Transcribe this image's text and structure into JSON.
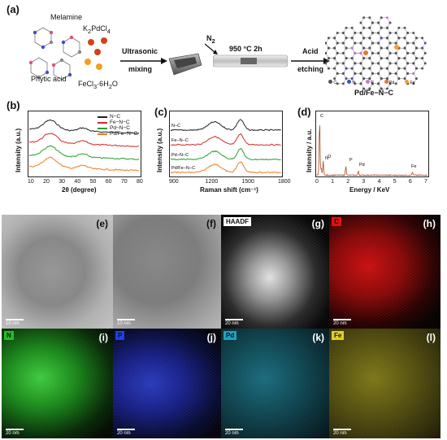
{
  "panel_a": {
    "label": "(a)",
    "melamine": "Melamine",
    "k2pdcl4_main": "K",
    "k2pdcl4_sub": "2",
    "k2pdcl4_rest": "PdCl",
    "k2pdcl4_sub2": "4",
    "phytic_acid": "Phytic acid",
    "fecl3_main": "FeCl",
    "fecl3_sub": "3",
    "fecl3_rest": "·6H",
    "fecl3_sub2": "2",
    "fecl3_end": "O",
    "ultrasonic": "Ultrasonic",
    "mixing": "mixing",
    "n2_main": "N",
    "n2_sub": "2",
    "temp": "950 °C 2h",
    "acid": "Acid",
    "etching": "etching",
    "product": "Pd/Fe−N−C",
    "legend_elements": [
      "C",
      "N",
      "P",
      "Pd",
      "Fe"
    ],
    "colors": {
      "C": "#555555",
      "N": "#3d4fc4",
      "P": "#c27bd0",
      "Pd": "#e0763a",
      "Fe": "#f0a030"
    }
  },
  "panel_b": {
    "label": "(b)",
    "ylabel": "Intensity (a.u.)",
    "xlabel": "2θ (degree)",
    "xticks": [
      "10",
      "20",
      "30",
      "40",
      "50",
      "60",
      "70",
      "80"
    ],
    "legend": [
      "N−C",
      "Fe−N−C",
      "Pd−N−C",
      "Pd/Fe−N−C"
    ]
  },
  "panel_c": {
    "label": "(c)",
    "ylabel": "Intensity (a.u.)",
    "xlabel": "Raman shift (cm⁻¹)",
    "xticks": [
      "900",
      "1200",
      "1500",
      "1800"
    ],
    "series_labels": [
      "N−C",
      "Fe−N−C",
      "Pd−N−C",
      "Pd/Fe−N−C"
    ]
  },
  "panel_d": {
    "label": "(d)",
    "ylabel": "Intensity / a.u.",
    "xlabel": "Energy / KeV",
    "xticks": [
      "0",
      "1",
      "2",
      "3",
      "4",
      "5",
      "6",
      "7"
    ],
    "peaks": [
      "C",
      "N",
      "O",
      "P",
      "Pd",
      "Fe"
    ]
  },
  "series_colors": [
    "#222222",
    "#d42a2a",
    "#2aa02a",
    "#f07a20"
  ],
  "micrographs": [
    {
      "label": "(e)",
      "scale": "10 nm",
      "chip": ""
    },
    {
      "label": "(f)",
      "scale": "10 nm",
      "chip": ""
    },
    {
      "label": "(g)",
      "scale": "20 nm",
      "chip": "HAADF"
    },
    {
      "label": "(h)",
      "scale": "20 nm",
      "chip": "C"
    },
    {
      "label": "(i)",
      "scale": "20 nm",
      "chip": "N"
    },
    {
      "label": "(j)",
      "scale": "20 nm",
      "chip": "P"
    },
    {
      "label": "(k)",
      "scale": "20 nm",
      "chip": "Pd"
    },
    {
      "label": "(l)",
      "scale": "20 nm",
      "chip": "Fe"
    }
  ]
}
